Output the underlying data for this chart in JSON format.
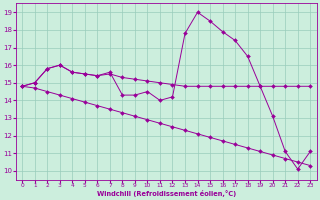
{
  "xlabel": "Windchill (Refroidissement éolien,°C)",
  "background_color": "#cceedd",
  "line_color": "#990099",
  "grid_color": "#99ccbb",
  "xlim": [
    -0.5,
    23.5
  ],
  "ylim": [
    9.5,
    19.5
  ],
  "xticks": [
    0,
    1,
    2,
    3,
    4,
    5,
    6,
    7,
    8,
    9,
    10,
    11,
    12,
    13,
    14,
    15,
    16,
    17,
    18,
    19,
    20,
    21,
    22,
    23
  ],
  "yticks": [
    10,
    11,
    12,
    13,
    14,
    15,
    16,
    17,
    18,
    19
  ],
  "series1": {
    "x": [
      0,
      1,
      2,
      3,
      4,
      5,
      6,
      7,
      8,
      9,
      10,
      11,
      12,
      13,
      14,
      15,
      16,
      17,
      18,
      19,
      20,
      21,
      22,
      23
    ],
    "y": [
      14.8,
      15.0,
      15.8,
      16.0,
      15.6,
      15.5,
      15.4,
      15.6,
      14.3,
      14.3,
      14.5,
      14.0,
      14.2,
      17.8,
      19.0,
      18.5,
      17.9,
      17.4,
      16.5,
      14.8,
      13.1,
      11.1,
      10.1,
      11.1
    ]
  },
  "series2": {
    "x": [
      0,
      1,
      2,
      3,
      4,
      5,
      6,
      7,
      8,
      9,
      10,
      11,
      12,
      13,
      14,
      15,
      16,
      17,
      18,
      19,
      20,
      21,
      22,
      23
    ],
    "y": [
      14.8,
      15.0,
      15.8,
      16.0,
      15.6,
      15.5,
      15.4,
      15.5,
      15.3,
      15.2,
      15.1,
      15.0,
      14.9,
      14.8,
      14.8,
      14.8,
      14.8,
      14.8,
      14.8,
      14.8,
      14.8,
      14.8,
      14.8,
      14.8
    ]
  },
  "series3": {
    "x": [
      0,
      1,
      2,
      3,
      4,
      5,
      6,
      7,
      8,
      9,
      10,
      11,
      12,
      13,
      14,
      15,
      16,
      17,
      18,
      19,
      20,
      21,
      22,
      23
    ],
    "y": [
      14.8,
      14.7,
      14.5,
      14.3,
      14.1,
      13.9,
      13.7,
      13.5,
      13.3,
      13.1,
      12.9,
      12.7,
      12.5,
      12.3,
      12.1,
      11.9,
      11.7,
      11.5,
      11.3,
      11.1,
      10.9,
      10.7,
      10.5,
      10.3
    ]
  }
}
